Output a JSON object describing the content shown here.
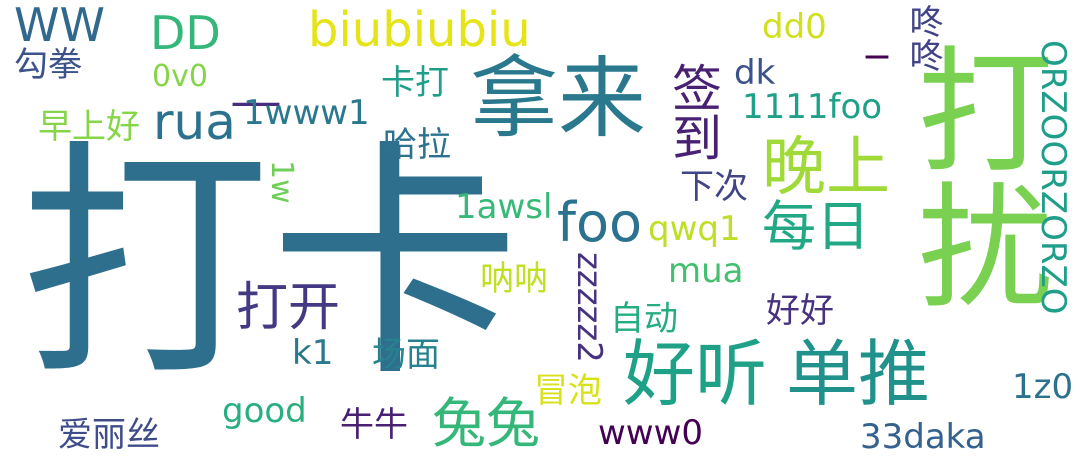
{
  "words": [
    {
      "id": "daka-large",
      "text": "打卡",
      "color": "#2e6f8e"
    },
    {
      "id": "darao",
      "text": "打扰",
      "color": "#7ad151"
    },
    {
      "id": "nalai",
      "text": "拿来",
      "color": "#2a788e"
    },
    {
      "id": "qiandao",
      "text": "签到",
      "color": "#482173"
    },
    {
      "id": "haoting",
      "text": "好听",
      "color": "#1fa187"
    },
    {
      "id": "dantui",
      "text": "单推",
      "color": "#21918c"
    },
    {
      "id": "wanshang",
      "text": "晚上",
      "color": "#a0da39"
    },
    {
      "id": "meiri",
      "text": "每日",
      "color": "#22a884"
    },
    {
      "id": "tutu",
      "text": "兔兔",
      "color": "#35b779"
    },
    {
      "id": "dakai",
      "text": "打开",
      "color": "#443a83"
    },
    {
      "id": "biubiubiu",
      "text": "biubiubiu",
      "color": "#e5e419"
    },
    {
      "id": "rua",
      "text": "rua",
      "color": "#2c728e"
    },
    {
      "id": "foo",
      "text": "foo",
      "color": "#2c728e"
    },
    {
      "id": "ww",
      "text": "WW",
      "color": "#31688e"
    },
    {
      "id": "dd",
      "text": "DD",
      "color": "#35b779"
    },
    {
      "id": "dashes",
      "text": "__",
      "color": "#472d7b"
    },
    {
      "id": "underscore",
      "text": "_",
      "color": "#440154"
    },
    {
      "id": "dongdong",
      "text": "咚咚",
      "color": "#414487"
    },
    {
      "id": "gouquan",
      "text": "勾拳",
      "color": "#3b528b"
    },
    {
      "id": "ov0",
      "text": "0v0",
      "color": "#86d549"
    },
    {
      "id": "zaoshanghao",
      "text": "早上好",
      "color": "#86d549"
    },
    {
      "id": "onewww1",
      "text": "1www1",
      "color": "#2a788e"
    },
    {
      "id": "kada",
      "text": "卡打",
      "color": "#1f9e89"
    },
    {
      "id": "dd0",
      "text": "dd0",
      "color": "#d0e11c"
    },
    {
      "id": "dk",
      "text": "dk",
      "color": "#3b528b"
    },
    {
      "id": "1111foo",
      "text": "1111foo",
      "color": "#1fa187"
    },
    {
      "id": "hala",
      "text": "哈拉",
      "color": "#2c728e"
    },
    {
      "id": "1w",
      "text": "1w",
      "color": "#6ece58"
    },
    {
      "id": "xiaci",
      "text": "下次",
      "color": "#414487"
    },
    {
      "id": "1awsl",
      "text": "1awsl",
      "color": "#38b977"
    },
    {
      "id": "qwq1",
      "text": "qwq1",
      "color": "#bddf26"
    },
    {
      "id": "nana",
      "text": "呐呐",
      "color": "#c2df23"
    },
    {
      "id": "mua",
      "text": "mua",
      "color": "#44bf70"
    },
    {
      "id": "zzzzz2",
      "text": "zzzzz2",
      "color": "#46327e"
    },
    {
      "id": "zidong",
      "text": "自动",
      "color": "#25ac82"
    },
    {
      "id": "haohao",
      "text": "好好",
      "color": "#46327e"
    },
    {
      "id": "orz",
      "text": "ORZOORZORZO",
      "color": "#1f9e89"
    },
    {
      "id": "k1",
      "text": "k1",
      "color": "#2a788e"
    },
    {
      "id": "changmian",
      "text": "场面",
      "color": "#26828e"
    },
    {
      "id": "maopao",
      "text": "冒泡",
      "color": "#d8e219"
    },
    {
      "id": "1z0",
      "text": "1z0",
      "color": "#2c728e"
    },
    {
      "id": "ailisi",
      "text": "爱丽丝",
      "color": "#3e4c8a"
    },
    {
      "id": "good",
      "text": "good",
      "color": "#29af7f"
    },
    {
      "id": "niuniu",
      "text": "牛牛",
      "color": "#482173"
    },
    {
      "id": "www0",
      "text": "www0",
      "color": "#440154"
    },
    {
      "id": "33daka",
      "text": "33daka",
      "color": "#34618d"
    }
  ]
}
